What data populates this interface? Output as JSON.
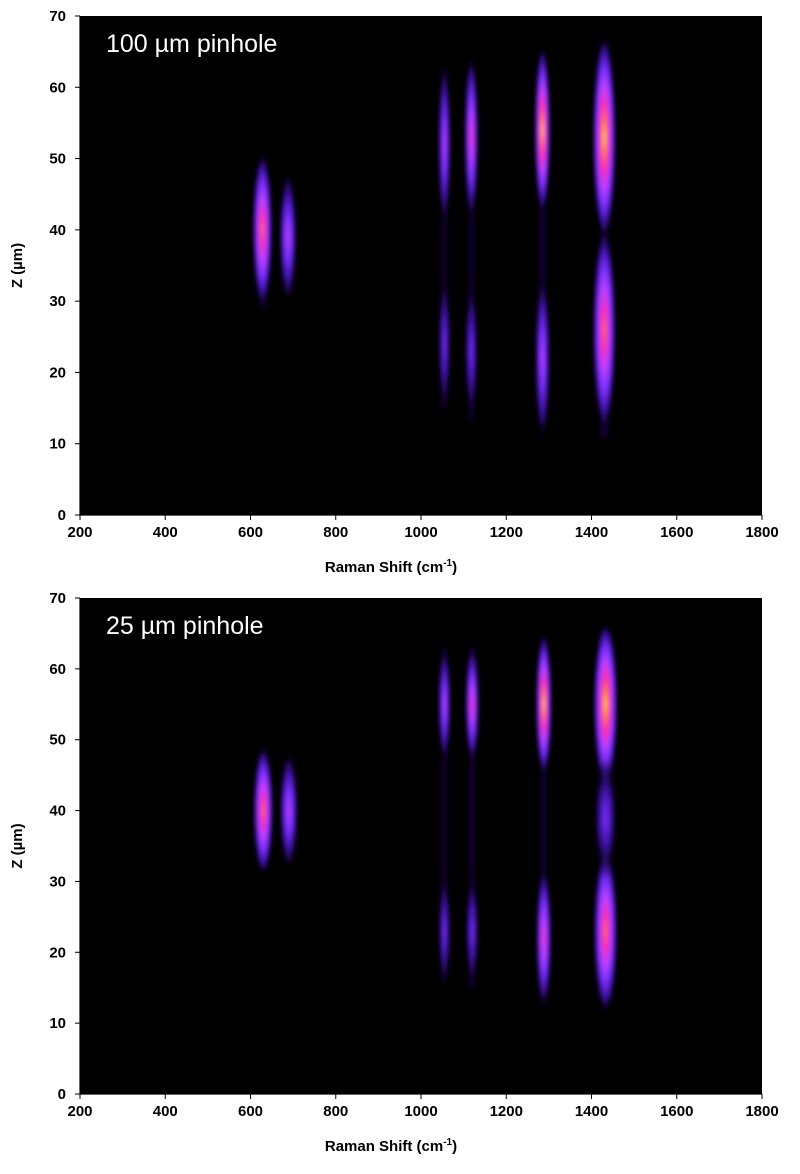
{
  "chart_data": [
    {
      "type": "heatmap",
      "title": "100 µm pinhole",
      "xlabel": "Raman Shift (cm",
      "xlabel_superscript": "-1",
      "xlabel_suffix": ")",
      "ylabel": "Z (µm)",
      "xlim": [
        200,
        1800
      ],
      "ylim": [
        0,
        70
      ],
      "x_ticks": [
        200,
        400,
        600,
        800,
        1000,
        1200,
        1400,
        1600,
        1800
      ],
      "y_ticks": [
        0,
        10,
        20,
        30,
        40,
        50,
        60,
        70
      ],
      "background": "#000000",
      "colormap": [
        "#000000",
        "#3a10a0",
        "#7a30ff",
        "#c040ff",
        "#ff2aa8",
        "#ff8040",
        "#ffe070"
      ],
      "grid": false,
      "bands": [
        {
          "x": 628,
          "width": 28,
          "z_min": 29,
          "z_max": 49,
          "segments": [
            {
              "z": 40,
              "spread": 6.5,
              "intensity": 0.8
            }
          ]
        },
        {
          "x": 688,
          "width": 24,
          "z_min": 31,
          "z_max": 47,
          "segments": [
            {
              "z": 39,
              "spread": 5.5,
              "intensity": 0.55
            }
          ]
        },
        {
          "x": 1055,
          "width": 12,
          "z_min": 15,
          "z_max": 62,
          "segments": [
            {
              "z": 52,
              "spread": 7,
              "intensity": 0.5
            },
            {
              "z": 24,
              "spread": 6,
              "intensity": 0.3
            }
          ]
        },
        {
          "x": 1118,
          "width": 14,
          "z_min": 13,
          "z_max": 62,
          "segments": [
            {
              "z": 53,
              "spread": 7,
              "intensity": 0.6
            },
            {
              "z": 23,
              "spread": 6,
              "intensity": 0.35
            }
          ]
        },
        {
          "x": 1285,
          "width": 18,
          "z_min": 13,
          "z_max": 65,
          "segments": [
            {
              "z": 54,
              "spread": 7,
              "intensity": 0.95
            },
            {
              "z": 22,
              "spread": 7,
              "intensity": 0.45
            }
          ]
        },
        {
          "x": 1430,
          "width": 36,
          "z_min": 11,
          "z_max": 66,
          "segments": [
            {
              "z": 53,
              "spread": 8.5,
              "intensity": 1.0
            },
            {
              "z": 26,
              "spread": 8.5,
              "intensity": 0.78
            }
          ]
        }
      ]
    },
    {
      "type": "heatmap",
      "title": "25 µm pinhole",
      "xlabel": "Raman Shift (cm",
      "xlabel_superscript": "-1",
      "xlabel_suffix": ")",
      "ylabel": "Z (µm)",
      "xlim": [
        200,
        1800
      ],
      "ylim": [
        0,
        70
      ],
      "x_ticks": [
        200,
        400,
        600,
        800,
        1000,
        1200,
        1400,
        1600,
        1800
      ],
      "y_ticks": [
        0,
        10,
        20,
        30,
        40,
        50,
        60,
        70
      ],
      "background": "#000000",
      "colormap": [
        "#000000",
        "#3a10a0",
        "#7a30ff",
        "#c040ff",
        "#ff2aa8",
        "#ff8040",
        "#ffe070"
      ],
      "grid": false,
      "bands": [
        {
          "x": 630,
          "width": 28,
          "z_min": 32,
          "z_max": 48,
          "segments": [
            {
              "z": 40,
              "spread": 5.5,
              "intensity": 0.85
            }
          ]
        },
        {
          "x": 690,
          "width": 26,
          "z_min": 33,
          "z_max": 47,
          "segments": [
            {
              "z": 40,
              "spread": 5,
              "intensity": 0.55
            }
          ]
        },
        {
          "x": 1055,
          "width": 12,
          "z_min": 16,
          "z_max": 63,
          "segments": [
            {
              "z": 55,
              "spread": 5,
              "intensity": 0.55
            },
            {
              "z": 23,
              "spread": 5,
              "intensity": 0.35
            }
          ]
        },
        {
          "x": 1120,
          "width": 14,
          "z_min": 15,
          "z_max": 63,
          "segments": [
            {
              "z": 55,
              "spread": 5,
              "intensity": 0.7
            },
            {
              "z": 23,
              "spread": 5,
              "intensity": 0.4
            }
          ]
        },
        {
          "x": 1288,
          "width": 18,
          "z_min": 14,
          "z_max": 64,
          "segments": [
            {
              "z": 55,
              "spread": 6,
              "intensity": 1.0
            },
            {
              "z": 22,
              "spread": 6,
              "intensity": 0.7
            }
          ]
        },
        {
          "x": 1433,
          "width": 38,
          "z_min": 14,
          "z_max": 64,
          "segments": [
            {
              "z": 55,
              "spread": 7,
              "intensity": 1.0
            },
            {
              "z": 23,
              "spread": 7,
              "intensity": 0.82
            },
            {
              "z": 39,
              "spread": 5,
              "intensity": 0.25
            }
          ]
        }
      ]
    }
  ]
}
